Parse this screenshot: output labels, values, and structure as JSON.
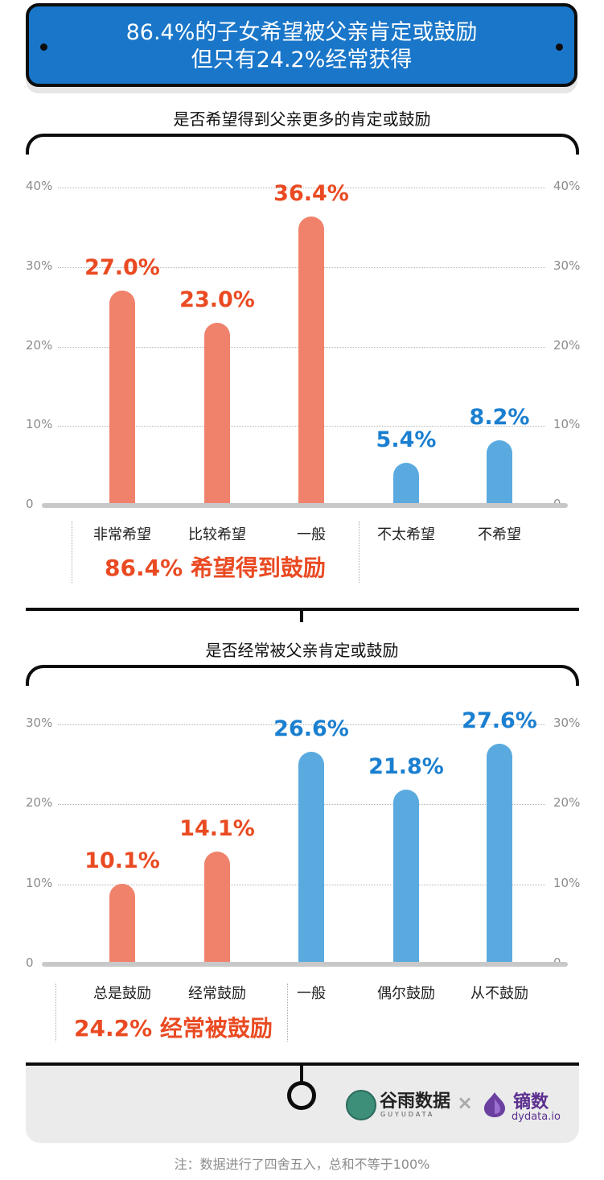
{
  "header": {
    "line1": "86.4%的子女希望被父亲肯定或鼓励",
    "line2": "但只有24.2%经常获得"
  },
  "chart_data": [
    {
      "type": "bar",
      "title": "是否希望得到父亲更多的肯定或鼓励",
      "categories": [
        "非常希望",
        "比较希望",
        "一般",
        "不太希望",
        "不希望"
      ],
      "values": [
        27.0,
        23.0,
        36.4,
        5.4,
        8.2
      ],
      "value_labels": [
        "27.0%",
        "23.0%",
        "36.4%",
        "5.4%",
        "8.2%"
      ],
      "ylim": [
        0,
        40
      ],
      "yticks": [
        "0",
        "10%",
        "20%",
        "30%",
        "40%"
      ],
      "yticks_right": [
        "0",
        "10%",
        "20%",
        "30%",
        "40%"
      ],
      "colors": [
        "#f0826b",
        "#f0826b",
        "#f0826b",
        "#5aaae0",
        "#5aaae0"
      ],
      "label_colors": [
        "#ea4a22",
        "#ea4a22",
        "#ea4a22",
        "#1b7fd0",
        "#1b7fd0"
      ],
      "summary": "86.4% 希望得到鼓励",
      "grid": true
    },
    {
      "type": "bar",
      "title": "是否经常被父亲肯定或鼓励",
      "categories": [
        "总是鼓励",
        "经常鼓励",
        "一般",
        "偶尔鼓励",
        "从不鼓励"
      ],
      "values": [
        10.1,
        14.1,
        26.6,
        21.8,
        27.6
      ],
      "value_labels": [
        "10.1%",
        "14.1%",
        "26.6%",
        "21.8%",
        "27.6%"
      ],
      "ylim": [
        0,
        30
      ],
      "yticks": [
        "0",
        "10%",
        "20%",
        "30%"
      ],
      "yticks_right": [
        "0",
        "10%",
        "20%",
        "30%"
      ],
      "colors": [
        "#f0826b",
        "#f0826b",
        "#5aaae0",
        "#5aaae0",
        "#5aaae0"
      ],
      "label_colors": [
        "#ea4a22",
        "#ea4a22",
        "#1b7fd0",
        "#1b7fd0",
        "#1b7fd0"
      ],
      "summary": "24.2% 经常被鼓励",
      "grid": true
    }
  ],
  "footer": {
    "brand1": "谷雨数据",
    "brand1_sub": "GUYUDATA",
    "times": "×",
    "brand2": "镝数",
    "brand2_sub": "dydata.io",
    "note": "注：数据进行了四舍五入，总和不等于100%"
  }
}
